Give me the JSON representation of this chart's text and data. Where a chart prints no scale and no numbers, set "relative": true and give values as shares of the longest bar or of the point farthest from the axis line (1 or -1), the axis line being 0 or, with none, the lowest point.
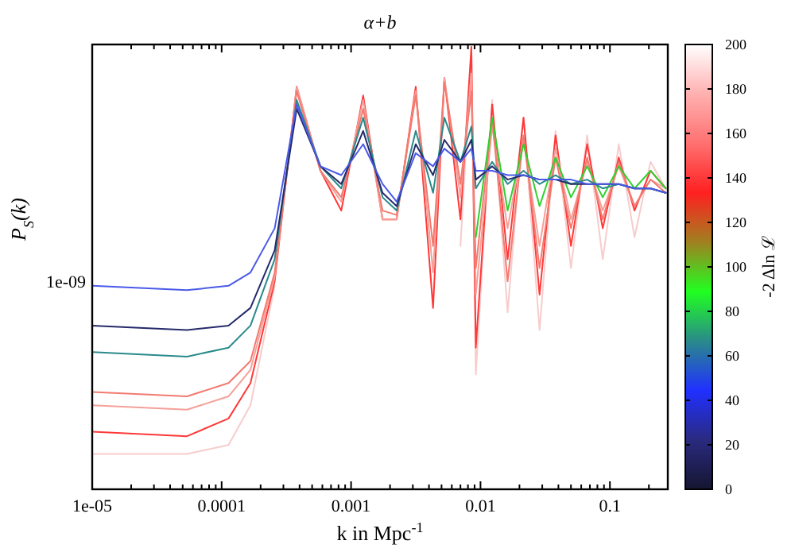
{
  "chart_data": {
    "type": "line",
    "title": "α+b",
    "xlabel": "k in Mpc$^{-1}$",
    "ylabel": "P$_{S}$(k)",
    "clabel": "-2 Δln ℒ",
    "log": "x",
    "relative": true,
    "annotations": [
      "1e-09"
    ],
    "xlim": [
      1e-05,
      0.28
    ],
    "xticks": [
      {
        "value": 1e-05,
        "label": "1e-05"
      },
      {
        "value": 2e-05,
        "label": null
      },
      {
        "value": 3e-05,
        "label": null
      },
      {
        "value": 4e-05,
        "label": null
      },
      {
        "value": 5e-05,
        "label": null
      },
      {
        "value": 6e-05,
        "label": null
      },
      {
        "value": 7e-05,
        "label": null
      },
      {
        "value": 8e-05,
        "label": null
      },
      {
        "value": 9e-05,
        "label": null
      },
      0.0001,
      {
        "value": 0.0002,
        "label": null
      },
      {
        "value": 0.0003,
        "label": null
      },
      {
        "value": 0.0004,
        "label": null
      },
      {
        "value": 0.0005,
        "label": null
      },
      {
        "value": 0.0006,
        "label": null
      },
      {
        "value": 0.0007,
        "label": null
      },
      {
        "value": 0.0008,
        "label": null
      },
      {
        "value": 0.0009,
        "label": null
      },
      0.001,
      {
        "value": 0.002,
        "label": null
      },
      {
        "value": 0.003,
        "label": null
      },
      {
        "value": 0.004,
        "label": null
      },
      {
        "value": 0.005,
        "label": null
      },
      {
        "value": 0.006,
        "label": null
      },
      {
        "value": 0.007,
        "label": null
      },
      {
        "value": 0.008,
        "label": null
      },
      {
        "value": 0.009,
        "label": null
      },
      0.01,
      {
        "value": 0.02,
        "label": null
      },
      {
        "value": 0.03,
        "label": null
      },
      {
        "value": 0.04,
        "label": null
      },
      {
        "value": 0.05,
        "label": null
      },
      {
        "value": 0.06,
        "label": null
      },
      {
        "value": 0.07,
        "label": null
      },
      {
        "value": 0.08,
        "label": null
      },
      {
        "value": 0.09,
        "label": null
      },
      0.1,
      {
        "value": 0.2,
        "label": null
      }
    ],
    "clim": [
      0,
      200
    ],
    "cticks": [
      0,
      20,
      40,
      60,
      80,
      100,
      120,
      140,
      160,
      180,
      200
    ],
    "x": [
      1e-05,
      5.4e-05,
      0.000113,
      0.000167,
      0.000257,
      0.00038,
      0.00058,
      0.00084,
      0.00124,
      0.00175,
      0.00225,
      0.00316,
      0.0043,
      0.00526,
      0.007,
      0.0085,
      0.0092,
      0.0123,
      0.0162,
      0.0215,
      0.0286,
      0.038,
      0.05,
      0.0667,
      0.088,
      0.117,
      0.155,
      0.206,
      0.27
    ],
    "series": [
      {
        "color": "#f7cccc",
        "values": [
          0.08,
          0.08,
          0.1,
          0.19,
          0.46,
          null,
          null,
          null,
          null,
          null,
          null,
          null,
          null,
          null,
          0.55,
          0.98,
          0.26,
          0.88,
          0.4,
          0.84,
          0.36,
          0.81,
          0.5,
          0.8,
          0.52,
          0.78,
          0.57,
          0.74,
          0.68
        ]
      },
      {
        "color": "#ff3838",
        "values": [
          0.13,
          0.12,
          0.16,
          0.24,
          0.47,
          0.91,
          0.72,
          0.63,
          0.89,
          0.61,
          0.61,
          0.91,
          0.41,
          0.93,
          0.61,
          1.0,
          0.32,
          0.87,
          0.52,
          0.84,
          0.44,
          0.8,
          0.55,
          0.78,
          0.59,
          0.75,
          0.63,
          0.72,
          0.68
        ]
      },
      {
        "color": "#f5a098",
        "values": [
          0.19,
          0.18,
          0.21,
          0.27,
          0.48,
          0.91,
          0.72,
          0.65,
          0.88,
          0.61,
          0.61,
          0.9,
          0.49,
          0.93,
          0.66,
          0.94,
          0.44,
          0.82,
          0.59,
          0.79,
          0.55,
          0.77,
          0.61,
          0.74,
          0.63,
          0.73,
          0.64,
          0.7,
          0.68
        ]
      },
      {
        "color": "#f27a70",
        "values": [
          0.22,
          0.21,
          0.24,
          0.29,
          0.49,
          0.9,
          0.72,
          0.66,
          0.86,
          0.63,
          0.62,
          0.89,
          0.55,
          0.92,
          0.69,
          0.9,
          0.5,
          0.84,
          0.47,
          0.8,
          0.5,
          0.75,
          0.59,
          0.75,
          0.61,
          0.74,
          0.64,
          0.7,
          0.67
        ]
      },
      {
        "color": "#30d030",
        "x": [
          0.0092,
          0.0123,
          0.0162,
          0.0215,
          0.0286,
          0.038,
          0.05,
          0.0667,
          0.088,
          0.117,
          0.155,
          0.206,
          0.27
        ],
        "values": [
          0.57,
          0.84,
          0.63,
          0.78,
          0.64,
          0.75,
          0.66,
          0.73,
          0.66,
          0.73,
          0.68,
          0.72,
          0.68
        ]
      },
      {
        "color": "#2a8a8a",
        "values": [
          0.31,
          0.3,
          0.32,
          0.37,
          0.52,
          0.88,
          0.73,
          0.68,
          0.84,
          0.66,
          0.63,
          0.81,
          0.67,
          0.84,
          0.74,
          0.82,
          0.68,
          0.74,
          0.69,
          0.72,
          0.69,
          0.71,
          0.69,
          0.7,
          0.68,
          0.69,
          0.68,
          0.68,
          0.67
        ]
      },
      {
        "color": "#252a6a",
        "values": [
          0.37,
          0.36,
          0.37,
          0.41,
          0.54,
          0.86,
          0.73,
          0.69,
          0.81,
          0.67,
          0.64,
          0.78,
          0.71,
          0.79,
          0.74,
          0.79,
          0.7,
          0.73,
          0.7,
          0.71,
          0.7,
          0.7,
          0.69,
          0.69,
          0.69,
          0.69,
          0.68,
          0.68,
          0.67
        ]
      },
      {
        "color": "#4a5ae8",
        "values": [
          0.46,
          0.45,
          0.46,
          0.49,
          0.59,
          0.87,
          0.73,
          0.71,
          0.78,
          0.69,
          0.65,
          0.76,
          0.73,
          0.77,
          0.74,
          0.77,
          0.72,
          0.72,
          0.71,
          0.71,
          0.7,
          0.7,
          0.7,
          0.69,
          0.69,
          0.69,
          0.68,
          0.68,
          0.67
        ]
      }
    ]
  }
}
